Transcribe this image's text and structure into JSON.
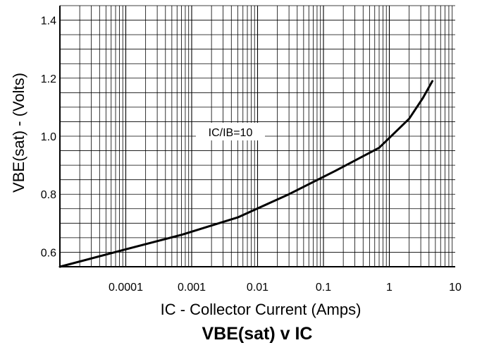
{
  "chart_data": {
    "type": "line",
    "title": "VBE(sat) v IC",
    "xlabel": "IC - Collector Current (Amps)",
    "ylabel": "VBE(sat) - (Volts)",
    "x_scale": "log",
    "xlim": [
      1e-05,
      10
    ],
    "ylim": [
      0.55,
      1.45
    ],
    "x_tick_labels": [
      "0.0001",
      "0.001",
      "0.01",
      "0.1",
      "1",
      "10"
    ],
    "x_tick_values": [
      0.0001,
      0.001,
      0.01,
      0.1,
      1,
      10
    ],
    "y_tick_labels": [
      "0.6",
      "0.8",
      "1.0",
      "1.2",
      "1.4"
    ],
    "y_tick_values": [
      0.6,
      0.8,
      1.0,
      1.2,
      1.4
    ],
    "grid": true,
    "annotation": "IC/IB=10",
    "series": [
      {
        "x": [
          1e-05,
          0.0001,
          0.0007,
          0.005,
          0.03,
          0.15,
          0.7,
          2.0,
          3.2,
          4.5
        ],
        "y": [
          0.55,
          0.61,
          0.66,
          0.72,
          0.8,
          0.88,
          0.96,
          1.06,
          1.13,
          1.19
        ]
      }
    ]
  }
}
